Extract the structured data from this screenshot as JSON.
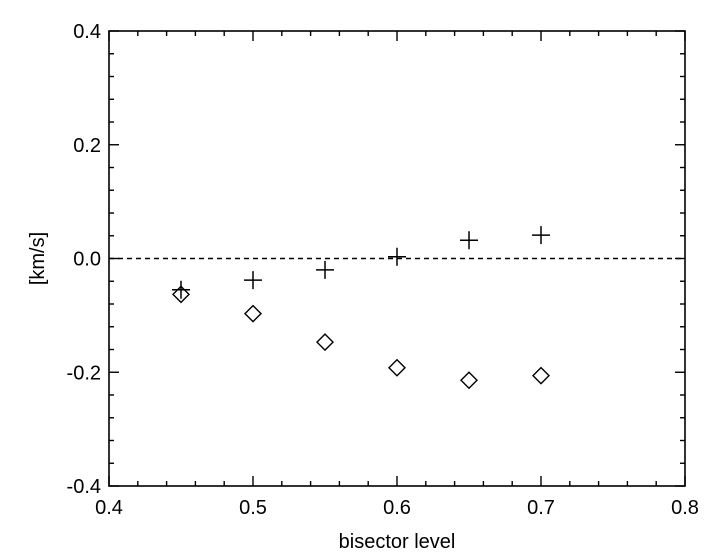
{
  "chart_data": {
    "type": "scatter",
    "title": "",
    "xlabel": "bisector level",
    "ylabel": "[km/s]",
    "xlim": [
      0.4,
      0.8
    ],
    "ylim": [
      -0.4,
      0.4
    ],
    "x_ticks": [
      0.4,
      0.5,
      0.6,
      0.7,
      0.8
    ],
    "x_tick_labels": [
      "0.4",
      "0.5",
      "0.6",
      "0.7",
      "0.8"
    ],
    "y_ticks": [
      0.4,
      0.2,
      0.0,
      -0.2,
      -0.4
    ],
    "y_tick_labels": [
      "0.4",
      "0.2",
      "0.0",
      "-0.2",
      "-0.4"
    ],
    "reference_line": {
      "y": 0.0,
      "style": "dashed"
    },
    "grid": false,
    "series": [
      {
        "marker": "plus",
        "x": [
          0.45,
          0.5,
          0.55,
          0.6,
          0.65,
          0.7
        ],
        "y": [
          -0.055,
          -0.038,
          -0.02,
          0.003,
          0.032,
          0.041
        ]
      },
      {
        "marker": "diamond",
        "x": [
          0.45,
          0.5,
          0.55,
          0.6,
          0.65,
          0.7
        ],
        "y": [
          -0.063,
          -0.097,
          -0.147,
          -0.192,
          -0.214,
          -0.206
        ]
      }
    ]
  }
}
